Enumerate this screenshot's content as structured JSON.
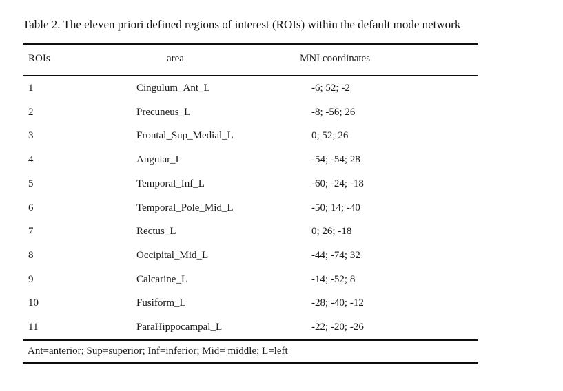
{
  "caption": "Table 2. The eleven priori defined regions of interest (ROIs) within the default mode network",
  "table": {
    "columns": [
      "ROIs",
      "area",
      "MNI coordinates"
    ],
    "rows": [
      {
        "roi": "1",
        "area": "Cingulum_Ant_L",
        "mni": "-6; 52; -2"
      },
      {
        "roi": "2",
        "area": "Precuneus_L",
        "mni": "-8; -56; 26"
      },
      {
        "roi": "3",
        "area": "Frontal_Sup_Medial_L",
        "mni": "0; 52; 26"
      },
      {
        "roi": "4",
        "area": "Angular_L",
        "mni": "-54; -54; 28"
      },
      {
        "roi": "5",
        "area": "Temporal_Inf_L",
        "mni": "-60; -24; -18"
      },
      {
        "roi": "6",
        "area": "Temporal_Pole_Mid_L",
        "mni": "-50; 14; -40"
      },
      {
        "roi": "7",
        "area": "Rectus_L",
        "mni": "0; 26; -18"
      },
      {
        "roi": "8",
        "area": "Occipital_Mid_L",
        "mni": "-44; -74; 32"
      },
      {
        "roi": "9",
        "area": "Calcarine_L",
        "mni": "-14; -52; 8"
      },
      {
        "roi": "10",
        "area": "Fusiform_L",
        "mni": "-28; -40; -12"
      },
      {
        "roi": "11",
        "area": "ParaHippocampal_L",
        "mni": "-22; -20; -26"
      }
    ],
    "footnote": "Ant=anterior; Sup=superior; Inf=inferior; Mid= middle; L=left",
    "colors": {
      "text": "#1b1b1b",
      "rule": "#0d0d0d",
      "background": "#ffffff"
    }
  }
}
